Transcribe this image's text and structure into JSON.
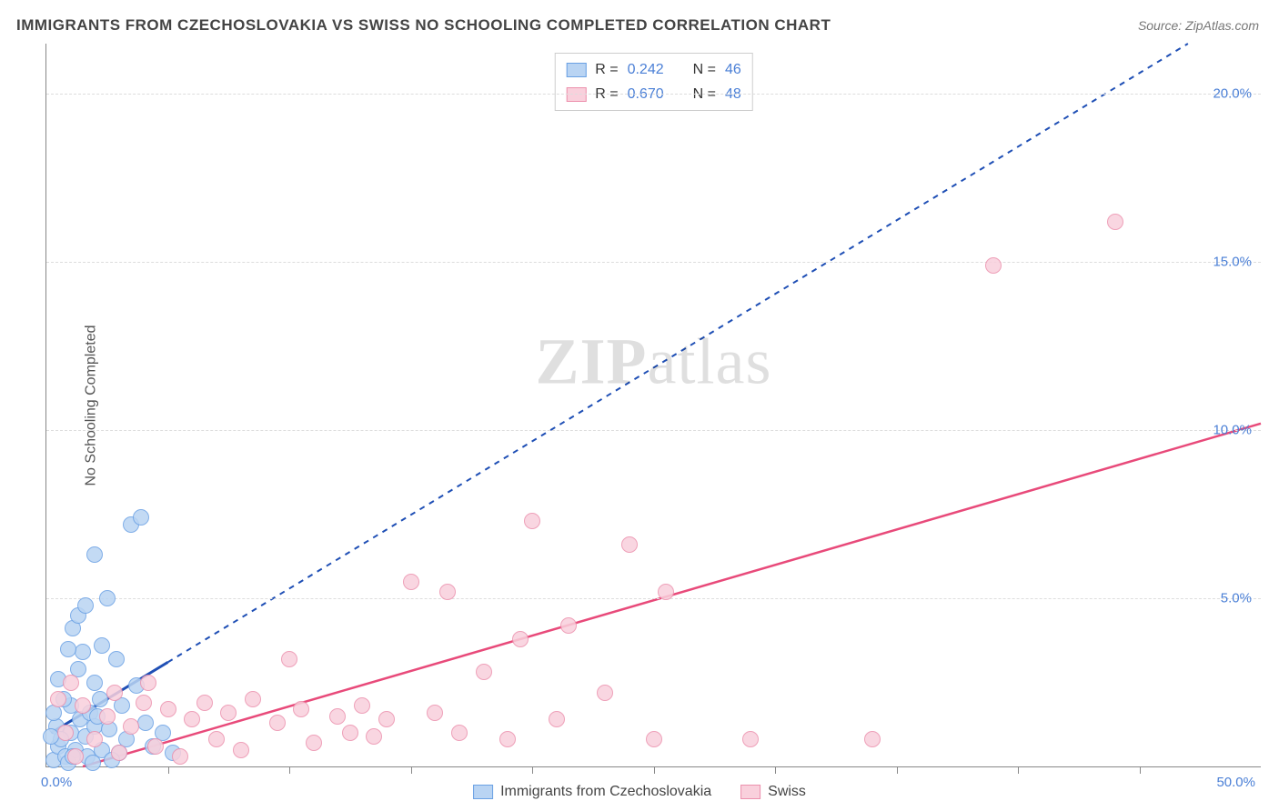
{
  "title": "IMMIGRANTS FROM CZECHOSLOVAKIA VS SWISS NO SCHOOLING COMPLETED CORRELATION CHART",
  "source_label": "Source:",
  "source_value": "ZipAtlas.com",
  "ylabel": "No Schooling Completed",
  "watermark_a": "ZIP",
  "watermark_b": "atlas",
  "chart": {
    "type": "scatter",
    "background_color": "#ffffff",
    "grid_color": "#dddddd",
    "axis_color": "#888888",
    "text_color": "#555555",
    "tick_label_color": "#4a7fd6",
    "xlim": [
      0,
      50
    ],
    "ylim": [
      0,
      21.5
    ],
    "x_origin_label": "0.0%",
    "x_max_label": "50.0%",
    "x_tick_positions": [
      5,
      10,
      15,
      20,
      25,
      30,
      35,
      40,
      45
    ],
    "y_gridlines": [
      5,
      10,
      15,
      20
    ],
    "y_gridline_labels": [
      "5.0%",
      "10.0%",
      "15.0%",
      "20.0%"
    ],
    "marker_radius": 9,
    "marker_stroke_width": 1.5,
    "series": [
      {
        "name": "Immigrants from Czechoslovakia",
        "fill_color": "#b9d4f3",
        "stroke_color": "#6aa1e4",
        "line_color": "#1f4fb5",
        "line_dash": "6,6",
        "line_width": 2,
        "R": "0.242",
        "N": "46",
        "trend_line": {
          "x1": 0.2,
          "y1": 1.0,
          "x2": 47.0,
          "y2": 21.5
        },
        "trend_solid_end": {
          "x": 5.0,
          "y": 3.1
        },
        "points": [
          [
            0.3,
            0.2
          ],
          [
            0.5,
            0.6
          ],
          [
            0.8,
            0.3
          ],
          [
            1.0,
            1.0
          ],
          [
            1.2,
            0.5
          ],
          [
            0.4,
            1.2
          ],
          [
            0.6,
            0.8
          ],
          [
            1.4,
            1.4
          ],
          [
            1.0,
            1.8
          ],
          [
            1.6,
            0.9
          ],
          [
            1.8,
            1.6
          ],
          [
            2.0,
            1.2
          ],
          [
            0.7,
            2.0
          ],
          [
            2.3,
            0.5
          ],
          [
            2.0,
            2.5
          ],
          [
            1.3,
            2.9
          ],
          [
            1.5,
            3.4
          ],
          [
            0.9,
            3.5
          ],
          [
            1.1,
            4.1
          ],
          [
            1.3,
            4.5
          ],
          [
            2.2,
            2.0
          ],
          [
            2.6,
            1.1
          ],
          [
            3.0,
            0.4
          ],
          [
            3.3,
            0.8
          ],
          [
            3.1,
            1.8
          ],
          [
            2.9,
            3.2
          ],
          [
            2.3,
            3.6
          ],
          [
            1.6,
            4.8
          ],
          [
            2.0,
            6.3
          ],
          [
            3.5,
            7.2
          ],
          [
            3.9,
            7.4
          ],
          [
            4.1,
            1.3
          ],
          [
            4.4,
            0.6
          ],
          [
            4.8,
            1.0
          ],
          [
            5.2,
            0.4
          ],
          [
            2.7,
            0.2
          ],
          [
            0.2,
            0.9
          ],
          [
            0.9,
            0.1
          ],
          [
            1.7,
            0.3
          ],
          [
            3.7,
            2.4
          ],
          [
            2.5,
            5.0
          ],
          [
            0.5,
            2.6
          ],
          [
            1.9,
            0.1
          ],
          [
            1.1,
            0.3
          ],
          [
            0.3,
            1.6
          ],
          [
            2.1,
            1.5
          ]
        ]
      },
      {
        "name": "Swiss",
        "fill_color": "#f9d0dc",
        "stroke_color": "#ec90ad",
        "line_color": "#e84a7a",
        "line_dash": "none",
        "line_width": 2.5,
        "R": "0.670",
        "N": "48",
        "trend_line": {
          "x1": 1.5,
          "y1": 0.0,
          "x2": 50.0,
          "y2": 10.2
        },
        "points": [
          [
            0.5,
            2.0
          ],
          [
            0.8,
            1.0
          ],
          [
            1.0,
            2.5
          ],
          [
            1.5,
            1.8
          ],
          [
            2.0,
            0.8
          ],
          [
            2.5,
            1.5
          ],
          [
            3.0,
            0.4
          ],
          [
            3.5,
            1.2
          ],
          [
            4.0,
            1.9
          ],
          [
            4.5,
            0.6
          ],
          [
            5.0,
            1.7
          ],
          [
            5.5,
            0.3
          ],
          [
            6.0,
            1.4
          ],
          [
            6.5,
            1.9
          ],
          [
            7.0,
            0.8
          ],
          [
            7.5,
            1.6
          ],
          [
            8.0,
            0.5
          ],
          [
            8.5,
            2.0
          ],
          [
            9.5,
            1.3
          ],
          [
            10.0,
            3.2
          ],
          [
            10.5,
            1.7
          ],
          [
            11.0,
            0.7
          ],
          [
            12.0,
            1.5
          ],
          [
            12.5,
            1.0
          ],
          [
            13.0,
            1.8
          ],
          [
            13.5,
            0.9
          ],
          [
            14.0,
            1.4
          ],
          [
            15.0,
            5.5
          ],
          [
            16.0,
            1.6
          ],
          [
            16.5,
            5.2
          ],
          [
            17.0,
            1.0
          ],
          [
            18.0,
            2.8
          ],
          [
            19.0,
            0.8
          ],
          [
            19.5,
            3.8
          ],
          [
            20.0,
            7.3
          ],
          [
            21.0,
            1.4
          ],
          [
            21.5,
            4.2
          ],
          [
            23.0,
            2.2
          ],
          [
            24.0,
            6.6
          ],
          [
            25.0,
            0.8
          ],
          [
            25.5,
            5.2
          ],
          [
            29.0,
            0.8
          ],
          [
            34.0,
            0.8
          ],
          [
            39.0,
            14.9
          ],
          [
            44.0,
            16.2
          ],
          [
            1.2,
            0.3
          ],
          [
            2.8,
            2.2
          ],
          [
            4.2,
            2.5
          ]
        ]
      }
    ]
  },
  "legend_top_labels": {
    "R": "R =",
    "N": "N ="
  },
  "legend_bottom": [
    {
      "label": "Immigrants from Czechoslovakia",
      "fill": "#b9d4f3",
      "stroke": "#6aa1e4"
    },
    {
      "label": "Swiss",
      "fill": "#f9d0dc",
      "stroke": "#ec90ad"
    }
  ]
}
